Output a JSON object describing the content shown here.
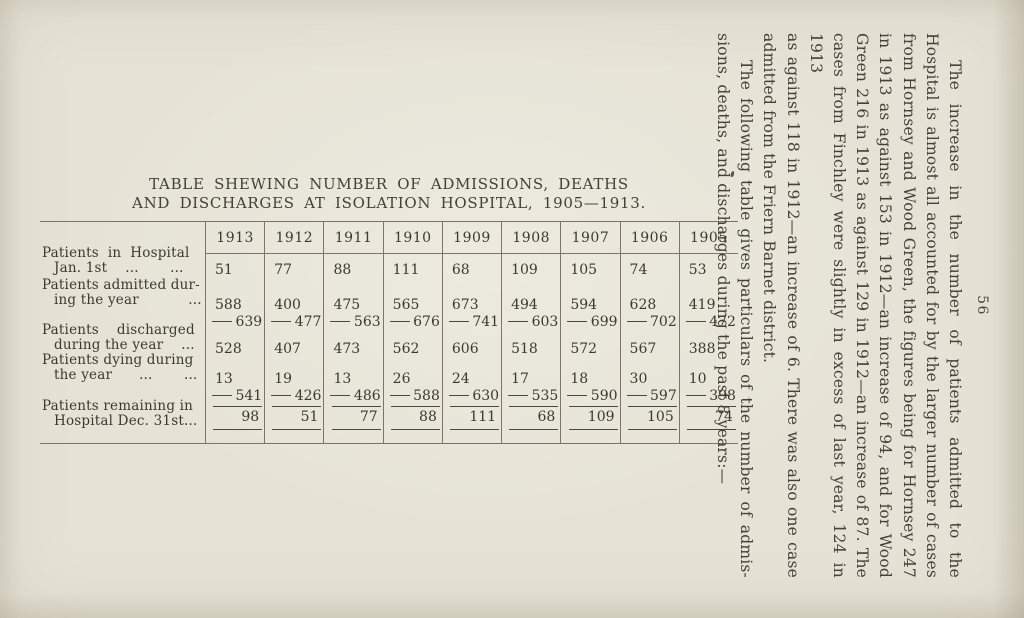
{
  "page": {
    "number": "56"
  },
  "table": {
    "title_line1": "TABLE SHEWING NUMBER OF ADMISSIONS, DEATHS",
    "title_line2": "AND DISCHARGES AT ISOLATION HOSPITAL, 1905—1913.",
    "years": [
      "1913",
      "1912",
      "1911",
      "1910",
      "1909",
      "1908",
      "1907",
      "1906",
      "1905"
    ],
    "rows": {
      "in_hospital": {
        "label_l1": "Patients  in  Hospital",
        "label_l2": "Jan. 1st    ...       ...",
        "values": [
          "51",
          "77",
          "88",
          "111",
          "68",
          "109",
          "105",
          "74",
          "53"
        ]
      },
      "admitted": {
        "label_l1": "Patients admitted dur-",
        "label_l2": "ing the year           ...",
        "values": [
          "588",
          "400",
          "475",
          "565",
          "673",
          "494",
          "594",
          "628",
          "419"
        ],
        "totals": [
          "639",
          "477",
          "563",
          "676",
          "741",
          "603",
          "699",
          "702",
          "472"
        ]
      },
      "discharged": {
        "label_l1": "Patients    discharged",
        "label_l2": "during the year    ...",
        "values": [
          "528",
          "407",
          "473",
          "562",
          "606",
          "518",
          "572",
          "567",
          "388"
        ]
      },
      "dying": {
        "label_l1": "Patients dying during",
        "label_l2": "the year      ...       ...",
        "values": [
          "13",
          "19",
          "13",
          "26",
          "24",
          "17",
          "18",
          "30",
          "10"
        ],
        "totals": [
          "541",
          "426",
          "486",
          "588",
          "630",
          "535",
          "590",
          "597",
          "398"
        ]
      },
      "remaining": {
        "label_l1": "Patients remaining in",
        "label_l2": "Hospital Dec. 31st...",
        "values": [
          "98",
          "51",
          "77",
          "88",
          "111",
          "68",
          "109",
          "105",
          "74"
        ]
      }
    }
  },
  "rotated_text": {
    "page_number": "56",
    "lines": [
      {
        "text": "The increase in the number of patients admitted to the",
        "cls": "indent"
      },
      {
        "text": "Hospital is almost all accounted for by the larger number of cases"
      },
      {
        "text": "from Hornsey and Wood Green, the figures being for Hornsey 247"
      },
      {
        "text": "in 1913 as against 153 in 1912—an increase of 94, and for Wood"
      },
      {
        "text": "Green 216 in 1913 as against 129 in 1912—an increase of 87.  The"
      },
      {
        "text": "cases from Finchley were slightly in excess of last year, 124 in 1913"
      },
      {
        "text": "as against 118 in 1912—an increase of 6.  There was also one case"
      },
      {
        "text": "admitted from the Friern Barnet district.",
        "cls": "endline"
      },
      {
        "text": "The following table gives particulars of the number of admis-",
        "cls": "indent"
      },
      {
        "text": "sions, deaths, and discharges during the past 8 years:—",
        "cls": "endline"
      }
    ]
  }
}
